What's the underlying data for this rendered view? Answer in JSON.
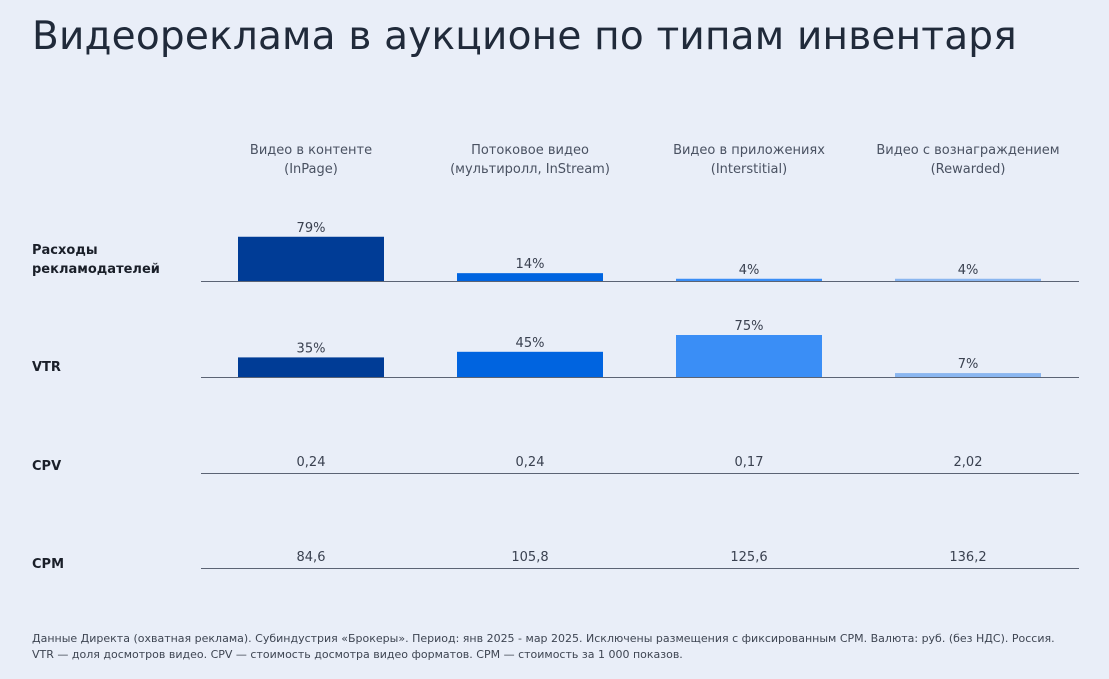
{
  "title": "Видеореклама в аукционе по типам инвентаря",
  "columns": [
    {
      "line1": "Видео в контенте",
      "line2": "(InPage)"
    },
    {
      "line1": "Потоковое видео",
      "line2": "(мультиролл, InStream)"
    },
    {
      "line1": "Видео в приложениях",
      "line2": "(Interstitial)"
    },
    {
      "line1": "Видео с вознаграждением",
      "line2": "(Rewarded)"
    }
  ],
  "rows": {
    "spend": {
      "line1": "Расходы",
      "line2": "рекламодателей"
    },
    "vtr": "VTR",
    "cpv": "CPV",
    "cpm": "CPM"
  },
  "colors": {
    "series": [
      "#003c96",
      "#0064e0",
      "#3a8ef6",
      "#8ab6f0"
    ],
    "axis": "#5b6374",
    "label": "#3a4150"
  },
  "chart_data": {
    "type": "table",
    "title": "Видеореклама в аукционе по типам инвентаря",
    "categories": [
      "Видео в контенте (InPage)",
      "Потоковое видео (мультиролл, InStream)",
      "Видео в приложениях (Interstitial)",
      "Видео с вознаграждением (Rewarded)"
    ],
    "series": [
      {
        "name": "Расходы рекламодателей",
        "values": [
          79,
          14,
          4,
          4
        ],
        "labels": [
          "79%",
          "14%",
          "4%",
          "4%"
        ],
        "display": "bar",
        "ymax": 100
      },
      {
        "name": "VTR",
        "values": [
          35,
          45,
          75,
          7
        ],
        "labels": [
          "35%",
          "45%",
          "75%",
          "7%"
        ],
        "display": "bar",
        "ymax": 100
      },
      {
        "name": "CPV",
        "values": [
          0.24,
          0.24,
          0.17,
          2.02
        ],
        "labels": [
          "0,24",
          "0,24",
          "0,17",
          "2,02"
        ],
        "display": "text"
      },
      {
        "name": "CPM",
        "values": [
          84.6,
          105.8,
          125.6,
          136.2
        ],
        "labels": [
          "84,6",
          "105,8",
          "125,6",
          "136,2"
        ],
        "display": "text"
      }
    ]
  },
  "footnote": {
    "line1": "Данные Директа (охватная реклама). Субиндустрия «Брокеры». Период: янв 2025 - мар 2025. Исключены размещения с фиксированным CPM. Валюта: руб. (без НДС). Россия.",
    "line2": "VTR — доля досмотров видео. CPV — стоимость досмотра видео форматов. CPM — стоимость за 1 000 показов."
  }
}
